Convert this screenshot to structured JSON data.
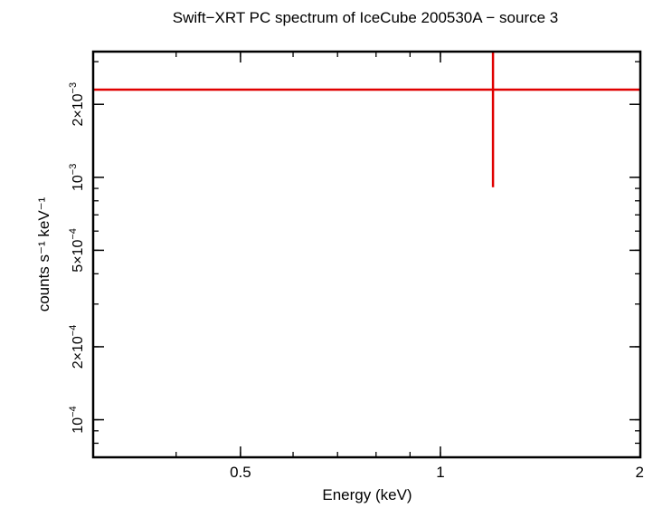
{
  "chart_data": {
    "type": "scatter",
    "title": "Swift−XRT PC spectrum of IceCube 200530A − source 3",
    "xlabel": "Energy (keV)",
    "ylabel": "counts s⁻¹ keV⁻¹",
    "x_scale": "log",
    "y_scale": "log",
    "xlim": [
      0.3,
      2.0
    ],
    "ylim": [
      7e-05,
      0.0033
    ],
    "grid": false,
    "x_ticks": [
      {
        "value": 0.5,
        "label": "0.5"
      },
      {
        "value": 1,
        "label": "1"
      },
      {
        "value": 2,
        "label": "2"
      }
    ],
    "y_ticks": [
      {
        "value": 0.0001,
        "label_base": "10",
        "label_exp": "−4",
        "label_prefix": ""
      },
      {
        "value": 0.0002,
        "label_base": "10",
        "label_exp": "−4",
        "label_prefix": "2×"
      },
      {
        "value": 0.0005,
        "label_base": "10",
        "label_exp": "−4",
        "label_prefix": "5×"
      },
      {
        "value": 0.001,
        "label_base": "10",
        "label_exp": "−3",
        "label_prefix": ""
      },
      {
        "value": 0.002,
        "label_base": "10",
        "label_exp": "−3",
        "label_prefix": "2×"
      }
    ],
    "series": [
      {
        "color": "#e00000",
        "points": [
          {
            "x": 1.2,
            "x_low": 0.3,
            "x_high": 2.0,
            "y": 0.0023,
            "y_low": 0.00091,
            "y_high": 0.0033
          }
        ]
      }
    ]
  }
}
